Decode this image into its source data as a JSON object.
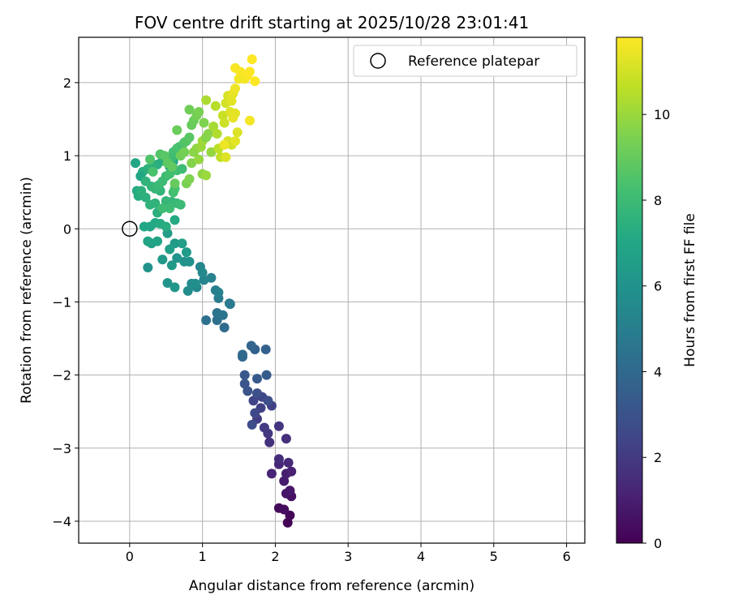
{
  "chart_data": {
    "type": "scatter",
    "title": "FOV centre drift starting at 2025/10/28 23:01:41",
    "xlabel": "Angular distance from reference (arcmin)",
    "ylabel": "Rotation from reference (arcmin)",
    "xlim": [
      -0.7,
      6.25
    ],
    "ylim": [
      -4.3,
      2.62
    ],
    "xticks": [
      0,
      1,
      2,
      3,
      4,
      5,
      6
    ],
    "yticks": [
      -4,
      -3,
      -2,
      -1,
      0,
      1,
      2
    ],
    "grid": true,
    "legend": {
      "position": "top-right",
      "entries": [
        {
          "label": "Reference platepar",
          "marker": "open-circle"
        }
      ]
    },
    "reference_point": {
      "x": 0,
      "y": 0
    },
    "colorbar": {
      "label": "Hours from first FF file",
      "min": 0,
      "max": 11.8,
      "ticks": [
        0,
        2,
        4,
        6,
        8,
        10
      ],
      "colormap": "viridis"
    },
    "colors": {
      "axes": "#000000",
      "grid": "#b0b0b0",
      "background": "#ffffff"
    },
    "points": [
      [
        2.17,
        -4.02,
        0.05
      ],
      [
        2.2,
        -3.92,
        0.2
      ],
      [
        2.05,
        -3.82,
        0.3
      ],
      [
        2.12,
        -3.84,
        0.4
      ],
      [
        2.22,
        -3.66,
        0.55
      ],
      [
        2.15,
        -3.62,
        0.65
      ],
      [
        2.2,
        -3.58,
        0.75
      ],
      [
        2.12,
        -3.45,
        0.9
      ],
      [
        2.15,
        -3.35,
        1.0
      ],
      [
        2.22,
        -3.32,
        1.1
      ],
      [
        1.95,
        -3.35,
        1.2
      ],
      [
        2.05,
        -3.22,
        1.3
      ],
      [
        2.18,
        -3.2,
        1.4
      ],
      [
        2.05,
        -3.15,
        1.5
      ],
      [
        2.15,
        -2.87,
        1.6
      ],
      [
        1.92,
        -2.92,
        1.7
      ],
      [
        2.05,
        -2.7,
        1.8
      ],
      [
        1.9,
        -2.8,
        1.9
      ],
      [
        1.85,
        -2.72,
        2.0
      ],
      [
        1.75,
        -2.6,
        2.1
      ],
      [
        1.8,
        -2.45,
        2.2
      ],
      [
        1.95,
        -2.42,
        2.3
      ],
      [
        1.7,
        -2.35,
        2.4
      ],
      [
        1.82,
        -2.3,
        2.5
      ],
      [
        1.72,
        -2.52,
        2.6
      ],
      [
        1.68,
        -2.68,
        2.7
      ],
      [
        1.9,
        -2.35,
        2.8
      ],
      [
        1.75,
        -2.25,
        2.9
      ],
      [
        1.62,
        -2.22,
        3.0
      ],
      [
        1.58,
        -2.12,
        3.1
      ],
      [
        1.58,
        -2.0,
        3.2
      ],
      [
        1.75,
        -2.05,
        3.3
      ],
      [
        1.88,
        -2.0,
        3.4
      ],
      [
        1.72,
        -1.65,
        3.6
      ],
      [
        1.87,
        -1.65,
        3.7
      ],
      [
        1.67,
        -1.6,
        3.8
      ],
      [
        1.55,
        -1.75,
        3.9
      ],
      [
        1.55,
        -1.72,
        4.0
      ],
      [
        1.3,
        -1.35,
        4.1
      ],
      [
        1.2,
        -1.25,
        4.3
      ],
      [
        1.05,
        -1.25,
        4.4
      ],
      [
        1.2,
        -1.15,
        4.5
      ],
      [
        1.28,
        -1.18,
        4.6
      ],
      [
        1.37,
        -1.02,
        4.7
      ],
      [
        1.38,
        -1.03,
        4.8
      ],
      [
        1.22,
        -0.95,
        4.9
      ],
      [
        1.18,
        -0.84,
        5.0
      ],
      [
        1.22,
        -0.87,
        5.1
      ],
      [
        1.12,
        -0.67,
        5.2
      ],
      [
        1.02,
        -0.7,
        5.3
      ],
      [
        0.97,
        -0.52,
        5.4
      ],
      [
        1.0,
        -0.6,
        5.5
      ],
      [
        0.92,
        -0.8,
        5.5
      ],
      [
        0.85,
        -0.75,
        5.6
      ],
      [
        0.8,
        -0.85,
        5.7
      ],
      [
        0.9,
        -0.75,
        5.8
      ],
      [
        0.82,
        -0.45,
        5.9
      ],
      [
        0.75,
        -0.45,
        6.0
      ],
      [
        0.65,
        -0.4,
        6.1
      ],
      [
        0.62,
        -0.8,
        6.2
      ],
      [
        0.52,
        -0.74,
        6.1
      ],
      [
        0.45,
        -0.42,
        6.3
      ],
      [
        0.58,
        -0.5,
        6.3
      ],
      [
        0.62,
        -0.2,
        6.4
      ],
      [
        0.72,
        -0.2,
        6.5
      ],
      [
        0.78,
        -0.32,
        6.4
      ],
      [
        0.52,
        -0.06,
        6.5
      ],
      [
        0.55,
        -0.28,
        6.6
      ],
      [
        0.3,
        -0.2,
        6.7
      ],
      [
        0.38,
        -0.17,
        6.8
      ],
      [
        0.25,
        -0.17,
        6.9
      ],
      [
        0.25,
        -0.53,
        6.0
      ],
      [
        0.2,
        0.03,
        7.0
      ],
      [
        0.28,
        0.03,
        7.0
      ],
      [
        0.35,
        0.08,
        7.1
      ],
      [
        0.42,
        0.07,
        7.2
      ],
      [
        0.5,
        0.03,
        7.3
      ],
      [
        0.62,
        0.12,
        7.2
      ],
      [
        0.38,
        0.22,
        7.4
      ],
      [
        0.12,
        0.45,
        7.3
      ],
      [
        0.1,
        0.52,
        7.2
      ],
      [
        0.16,
        0.52,
        7.5
      ],
      [
        0.22,
        0.43,
        7.5
      ],
      [
        0.28,
        0.33,
        7.6
      ],
      [
        0.35,
        0.35,
        7.6
      ],
      [
        0.42,
        0.52,
        7.7
      ],
      [
        0.5,
        0.38,
        7.8
      ],
      [
        0.58,
        0.37,
        7.8
      ],
      [
        0.65,
        0.35,
        7.9
      ],
      [
        0.7,
        0.33,
        8.0
      ],
      [
        0.45,
        0.28,
        8.1
      ],
      [
        0.55,
        0.28,
        8.1
      ],
      [
        0.6,
        0.5,
        8.2
      ],
      [
        0.62,
        0.55,
        8.3
      ],
      [
        0.65,
        0.8,
        8.2
      ],
      [
        0.72,
        0.82,
        8.1
      ],
      [
        0.55,
        0.85,
        7.3
      ],
      [
        0.6,
        0.92,
        7.2
      ],
      [
        0.45,
        0.93,
        7.3
      ],
      [
        0.38,
        0.88,
        7.4
      ],
      [
        0.32,
        0.85,
        7.5
      ],
      [
        0.25,
        0.82,
        7.6
      ],
      [
        0.18,
        0.78,
        7.4
      ],
      [
        0.15,
        0.72,
        7.0
      ],
      [
        0.08,
        0.9,
        7.0
      ],
      [
        0.22,
        0.65,
        7.6
      ],
      [
        0.3,
        0.58,
        7.7
      ],
      [
        0.35,
        0.55,
        7.8
      ],
      [
        0.4,
        0.6,
        7.9
      ],
      [
        0.45,
        0.65,
        8.0
      ],
      [
        0.5,
        0.72,
        8.1
      ],
      [
        0.55,
        0.75,
        8.2
      ],
      [
        0.58,
        0.98,
        8.0
      ],
      [
        0.6,
        1.05,
        8.2
      ],
      [
        0.65,
        1.1,
        8.3
      ],
      [
        0.68,
        1.12,
        8.4
      ],
      [
        0.72,
        1.14,
        8.3
      ],
      [
        0.75,
        1.18,
        8.5
      ],
      [
        0.78,
        1.2,
        8.6
      ],
      [
        0.82,
        1.25,
        8.7
      ],
      [
        0.42,
        1.02,
        8.6
      ],
      [
        0.48,
        1.0,
        8.7
      ],
      [
        0.28,
        0.95,
        8.5
      ],
      [
        0.32,
        0.78,
        8.4
      ],
      [
        0.52,
        0.9,
        8.8
      ],
      [
        0.58,
        0.85,
        8.9
      ],
      [
        0.62,
        0.62,
        9.0
      ],
      [
        0.65,
        1.35,
        9.1
      ],
      [
        0.7,
        1.0,
        9.2
      ],
      [
        0.75,
        1.05,
        9.3
      ],
      [
        0.78,
        0.62,
        9.4
      ],
      [
        0.82,
        0.68,
        9.5
      ],
      [
        0.85,
        0.9,
        9.6
      ],
      [
        0.88,
        1.05,
        9.7
      ],
      [
        0.92,
        1.1,
        9.8
      ],
      [
        0.95,
        0.95,
        9.9
      ],
      [
        0.98,
        1.12,
        10.0
      ],
      [
        1.0,
        1.2,
        10.1
      ],
      [
        0.85,
        1.42,
        9.0
      ],
      [
        0.88,
        1.48,
        9.1
      ],
      [
        0.82,
        1.63,
        9.2
      ],
      [
        0.92,
        1.55,
        9.3
      ],
      [
        0.95,
        1.6,
        9.4
      ],
      [
        1.02,
        1.45,
        9.5
      ],
      [
        1.05,
        1.25,
        9.6
      ],
      [
        1.08,
        1.3,
        9.7
      ],
      [
        1.0,
        0.75,
        9.8
      ],
      [
        1.05,
        0.73,
        10.0
      ],
      [
        1.12,
        1.05,
        9.9
      ],
      [
        1.15,
        1.4,
        10.2
      ],
      [
        1.05,
        1.76,
        10.3
      ],
      [
        1.18,
        1.68,
        10.5
      ],
      [
        1.2,
        1.3,
        10.4
      ],
      [
        1.22,
        1.1,
        10.6
      ],
      [
        1.25,
        0.98,
        10.7
      ],
      [
        1.28,
        1.55,
        10.8
      ],
      [
        1.3,
        1.45,
        10.9
      ],
      [
        1.32,
        1.72,
        11.0
      ],
      [
        1.35,
        1.82,
        11.1
      ],
      [
        1.38,
        1.6,
        11.2
      ],
      [
        1.4,
        1.75,
        11.3
      ],
      [
        1.42,
        1.85,
        11.4
      ],
      [
        1.45,
        1.58,
        11.3
      ],
      [
        1.48,
        1.32,
        11.2
      ],
      [
        1.35,
        1.2,
        11.1
      ],
      [
        1.4,
        1.15,
        11.0
      ],
      [
        1.45,
        1.2,
        11.3
      ],
      [
        1.32,
        0.98,
        11.2
      ],
      [
        1.3,
        1.15,
        11.5
      ],
      [
        1.42,
        1.52,
        11.4
      ],
      [
        1.45,
        1.92,
        11.5
      ],
      [
        1.5,
        2.05,
        11.6
      ],
      [
        1.45,
        2.2,
        11.7
      ],
      [
        1.52,
        2.15,
        11.7
      ],
      [
        1.58,
        2.05,
        11.6
      ],
      [
        1.62,
        2.1,
        11.7
      ],
      [
        1.65,
        2.15,
        11.8
      ],
      [
        1.68,
        2.32,
        11.8
      ],
      [
        1.72,
        2.02,
        11.8
      ],
      [
        1.65,
        1.48,
        11.6
      ]
    ]
  }
}
